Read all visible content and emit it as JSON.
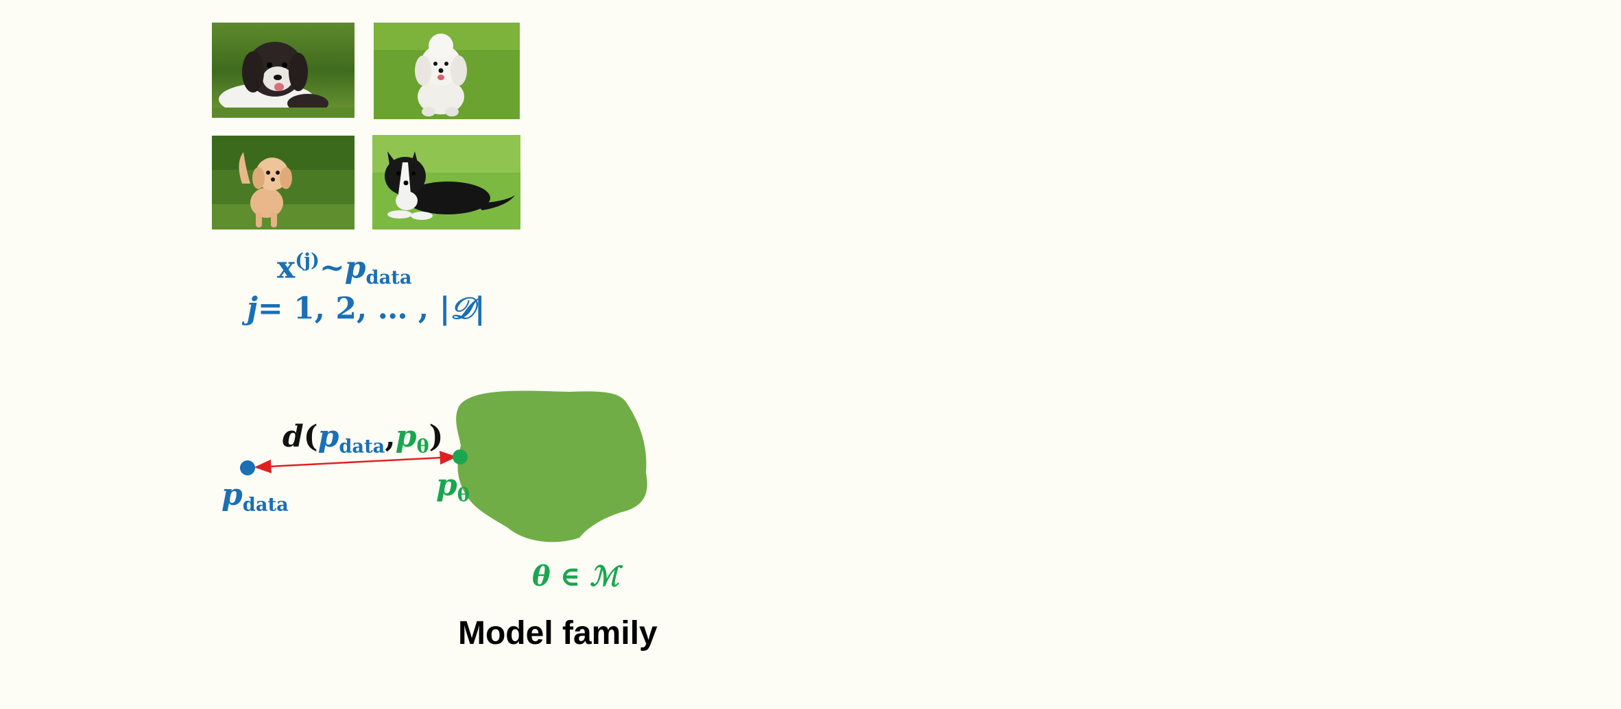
{
  "samples": {
    "images": [
      {
        "label": "fluffy black and white puppy on grass"
      },
      {
        "label": "white poodle on grass"
      },
      {
        "label": "apricot puppy on grass"
      },
      {
        "label": "black and white border collie lying on grass"
      }
    ],
    "formula_line1": {
      "x": "x",
      "j_sup": "(j)",
      "sim": "~",
      "p": "p",
      "sub": "data"
    },
    "formula_line2": {
      "j": "j",
      "rest": "= 1, 2, … , |",
      "D": "𝒟",
      "close": "|"
    }
  },
  "distance": {
    "d": "d",
    "open": "(",
    "p_data": "p",
    "data_sub": "data",
    "comma": ",",
    "p_theta": "p",
    "theta_sub": "θ",
    "close": ")"
  },
  "p_data_label": {
    "p": "p",
    "sub": "data"
  },
  "p_theta_label": {
    "p": "p",
    "sub": "θ"
  },
  "model_family": {
    "membership": "θ ∈ ℳ",
    "title": "Model family"
  },
  "colors": {
    "blue": "#1a6fb5",
    "green": "#1aa650",
    "blob": "#70ad47",
    "arrow": "#e02020",
    "background": "#fdfdf5"
  }
}
